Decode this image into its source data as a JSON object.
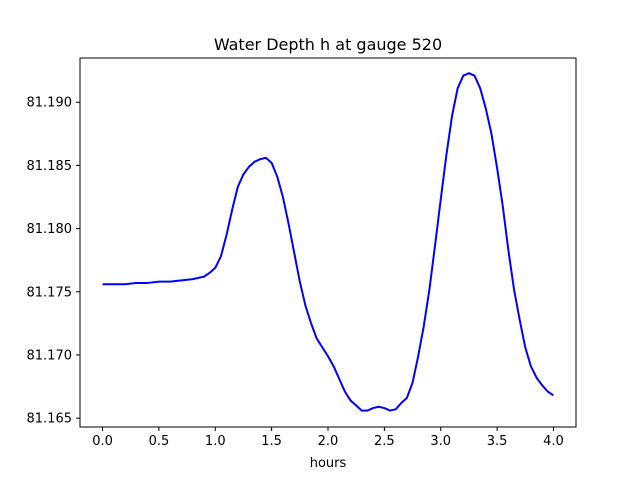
{
  "chart_data": {
    "type": "line",
    "title": "Water Depth h at gauge 520",
    "xlabel": "hours",
    "ylabel": "",
    "xlim": [
      -0.2,
      4.2
    ],
    "ylim": [
      81.1643,
      81.1935
    ],
    "grid": false,
    "legend": "none",
    "line_color": "#0000ff",
    "x_ticks": [
      0.0,
      0.5,
      1.0,
      1.5,
      2.0,
      2.5,
      3.0,
      3.5,
      4.0
    ],
    "x_tick_labels": [
      "0.0",
      "0.5",
      "1.0",
      "1.5",
      "2.0",
      "2.5",
      "3.0",
      "3.5",
      "4.0"
    ],
    "y_ticks": [
      81.165,
      81.17,
      81.175,
      81.18,
      81.185,
      81.19
    ],
    "y_tick_labels": [
      "81.165",
      "81.170",
      "81.175",
      "81.180",
      "81.185",
      "81.190"
    ],
    "series": [
      {
        "x": [
          0.0,
          0.1,
          0.2,
          0.3,
          0.4,
          0.5,
          0.6,
          0.7,
          0.8,
          0.9,
          0.95,
          1.0,
          1.05,
          1.1,
          1.15,
          1.2,
          1.25,
          1.3,
          1.35,
          1.4,
          1.45,
          1.5,
          1.55,
          1.6,
          1.65,
          1.7,
          1.75,
          1.8,
          1.85,
          1.9,
          1.95,
          2.0,
          2.05,
          2.1,
          2.15,
          2.2,
          2.25,
          2.3,
          2.35,
          2.4,
          2.45,
          2.5,
          2.55,
          2.6,
          2.65,
          2.7,
          2.75,
          2.8,
          2.85,
          2.9,
          2.95,
          3.0,
          3.05,
          3.1,
          3.15,
          3.2,
          3.25,
          3.3,
          3.35,
          3.4,
          3.45,
          3.5,
          3.55,
          3.6,
          3.65,
          3.7,
          3.75,
          3.8,
          3.85,
          3.9,
          3.95,
          4.0
        ],
        "y": [
          81.1756,
          81.1756,
          81.1756,
          81.1757,
          81.1757,
          81.1758,
          81.1758,
          81.1759,
          81.176,
          81.1762,
          81.1765,
          81.1769,
          81.1778,
          81.1795,
          81.1815,
          81.1833,
          81.1843,
          81.1849,
          81.1853,
          81.1855,
          81.1856,
          81.1852,
          81.1841,
          81.1825,
          81.1804,
          81.1781,
          81.1758,
          81.1739,
          81.1725,
          81.1713,
          81.1706,
          81.1699,
          81.1691,
          81.1681,
          81.1671,
          81.1664,
          81.166,
          81.1656,
          81.1656,
          81.1658,
          81.1659,
          81.1658,
          81.1656,
          81.1657,
          81.1662,
          81.1666,
          81.1678,
          81.1699,
          81.1723,
          81.1752,
          81.1787,
          81.1823,
          81.1858,
          81.1889,
          81.1911,
          81.1921,
          81.1923,
          81.1921,
          81.1911,
          81.1895,
          81.1875,
          81.1848,
          81.1818,
          81.1783,
          81.1752,
          81.1728,
          81.1706,
          81.1691,
          81.1682,
          81.1676,
          81.1671,
          81.1668
        ]
      }
    ]
  }
}
